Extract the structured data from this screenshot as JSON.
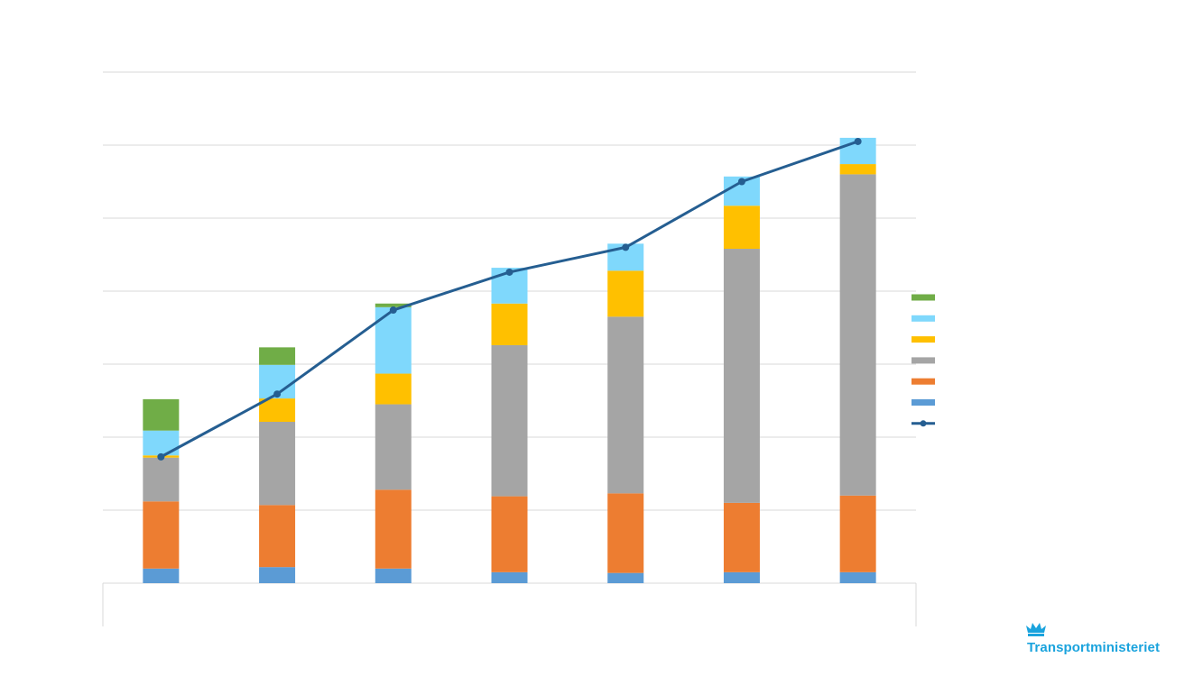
{
  "chart_data": {
    "type": "bar",
    "stacked": true,
    "title": "",
    "xlabel": "",
    "ylabel": "",
    "categories": [
      "",
      "",
      "",
      "",
      "",
      "",
      ""
    ],
    "ylim": [
      0,
      70
    ],
    "grid": true,
    "legend_position": "right",
    "series": [
      {
        "color": "#5b9bd5",
        "kind": "bar",
        "values": [
          2.0,
          2.2,
          2.0,
          1.5,
          1.4,
          1.5,
          1.5
        ]
      },
      {
        "color": "#ed7d31",
        "kind": "bar",
        "values": [
          9.2,
          8.5,
          10.8,
          10.4,
          10.9,
          9.5,
          10.5
        ]
      },
      {
        "color": "#a5a5a5",
        "kind": "bar",
        "values": [
          6.0,
          11.4,
          11.7,
          20.7,
          24.2,
          34.8,
          44.0
        ]
      },
      {
        "color": "#ffc000",
        "kind": "bar",
        "values": [
          0.3,
          3.2,
          4.2,
          5.7,
          6.3,
          5.9,
          1.4
        ]
      },
      {
        "color": "#7fd8fc",
        "kind": "bar",
        "values": [
          3.4,
          4.6,
          9.1,
          4.9,
          3.7,
          4.0,
          3.6
        ]
      },
      {
        "color": "#70ad47",
        "kind": "bar",
        "values": [
          4.3,
          2.4,
          0.5,
          0,
          0,
          0,
          0
        ]
      },
      {
        "color": "#255e91",
        "kind": "line",
        "values": [
          17.3,
          25.9,
          37.4,
          42.6,
          46.0,
          55.0,
          60.5
        ]
      }
    ]
  },
  "logo": {
    "text": "Transportministeriet",
    "color": "#1aa3dd"
  }
}
